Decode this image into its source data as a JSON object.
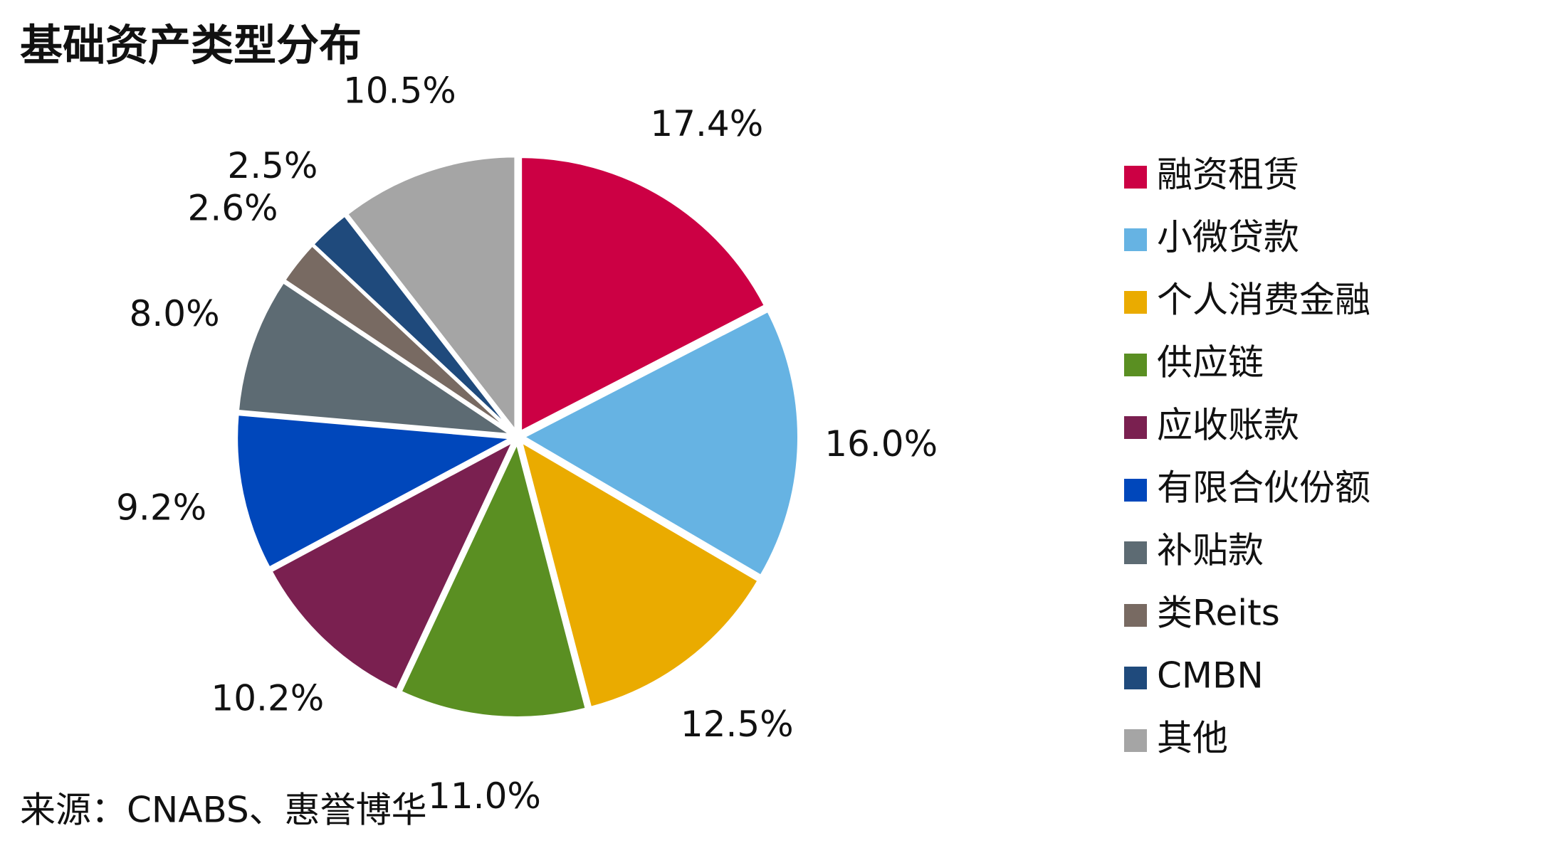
{
  "chart_data": {
    "type": "pie",
    "title": "基础资产类型分布",
    "source": "来源：CNABS、惠誉博华",
    "categories": [
      "融资租赁",
      "小微贷款",
      "个人消费金融",
      "供应链",
      "应收账款",
      "有限合伙份额",
      "补贴款",
      "类Reits",
      "CMBN",
      "其他"
    ],
    "values": [
      17.4,
      16.0,
      12.5,
      11.0,
      10.2,
      9.2,
      8.0,
      2.6,
      2.5,
      10.5
    ],
    "value_labels": [
      "17.4%",
      "16.0%",
      "12.5%",
      "11.0%",
      "10.2%",
      "9.2%",
      "8.0%",
      "2.6%",
      "2.5%",
      "10.5%"
    ],
    "colors": [
      "#cc0044",
      "#66b3e3",
      "#eaab00",
      "#5a8f22",
      "#7a2050",
      "#0047bb",
      "#5d6b73",
      "#786a62",
      "#1f4a7c",
      "#a5a5a5"
    ],
    "legend": "right"
  }
}
